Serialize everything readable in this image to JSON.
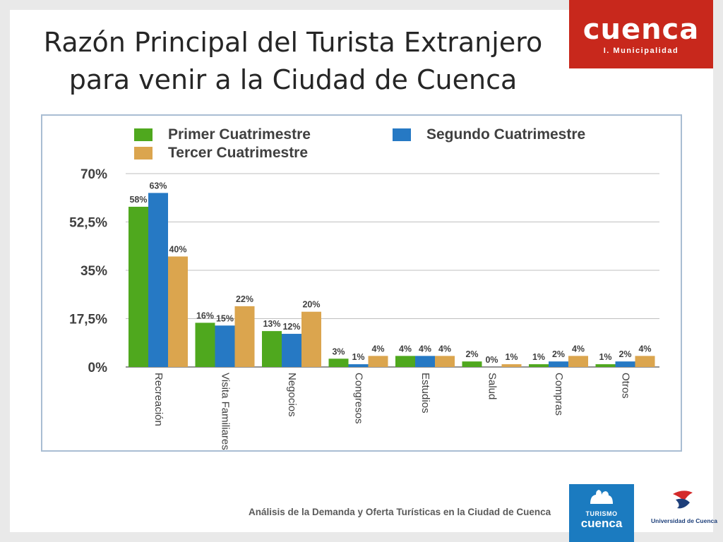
{
  "slide": {
    "title_line1": "Razón Principal del Turista Extranjero",
    "title_line2": "para venir a la Ciudad de Cuenca",
    "footer": "Análisis de la Demanda y Oferta Turísticas en la Ciudad de Cuenca"
  },
  "logos": {
    "cuenca_word": "cuenca",
    "cuenca_sub": "I. Municipalidad",
    "turismo_small": "TURISMO",
    "turismo_big": "cuenca",
    "universidad": "Universidad de Cuenca"
  },
  "colors": {
    "series1": "#4fa81e",
    "series2": "#2679c4",
    "series3": "#dba54e",
    "cuenca_red": "#c8281c",
    "turismo_blue": "#1b7bc0",
    "grid": "#bfbfbf"
  },
  "chart_data": {
    "type": "bar",
    "title": "",
    "categories": [
      "Recreación",
      "Visita Familiares",
      "Negocios",
      "Congresos",
      "Estudios",
      "Salud",
      "Compras",
      "Otros"
    ],
    "series": [
      {
        "name": "Primer Cuatrimestre",
        "values": [
          58,
          16,
          13,
          3,
          4,
          2,
          1,
          1
        ],
        "labels": [
          "58%",
          "16%",
          "13%",
          "3%",
          "4%",
          "2%",
          "1%",
          "1%"
        ]
      },
      {
        "name": "Segundo Cuatrimestre",
        "values": [
          63,
          15,
          12,
          1,
          4,
          0,
          2,
          2
        ],
        "labels": [
          "63%",
          "15%",
          "12%",
          "1%",
          "4%",
          "0%",
          "2%",
          "2%"
        ]
      },
      {
        "name": "Tercer Cuatrimestre",
        "values": [
          40,
          22,
          20,
          4,
          4,
          1,
          4,
          4
        ],
        "labels": [
          "40%",
          "22%",
          "20%",
          "4%",
          "4%",
          "1%",
          "4%",
          "4%"
        ]
      }
    ],
    "yticks": [
      0,
      17.5,
      35,
      52.5,
      70
    ],
    "ytick_labels": [
      "0%",
      "17,5%",
      "35%",
      "52,5%",
      "70%"
    ],
    "ylim": [
      0,
      70
    ],
    "xlabel": "",
    "ylabel": "",
    "grid": true,
    "legend_position": "top"
  }
}
